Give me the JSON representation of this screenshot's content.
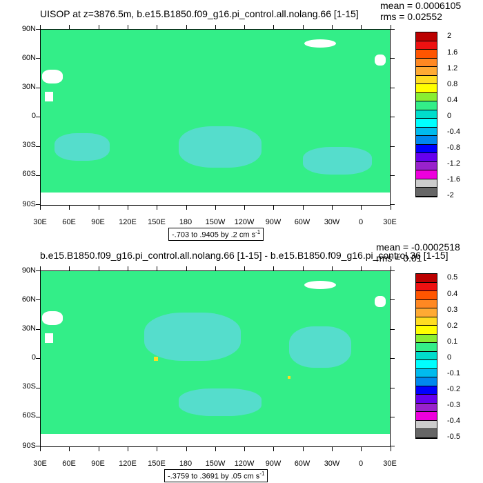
{
  "panels": [
    {
      "title": "UISOP at z=3876.5m, b.e15.B1850.f09_g16.pi_control.all.nolang.66 [1-15]",
      "mean_label": "mean = 0.0006105",
      "rms_label": "rms = 0.02552",
      "range_label": "-.703 to .9405 by .2 cm s",
      "range_superscript": "-1",
      "colorbar_labels": [
        "2",
        "1.6",
        "1.2",
        "0.8",
        "0.4",
        "0",
        "-0.4",
        "-0.8",
        "-1.2",
        "-1.6",
        "-2"
      ]
    },
    {
      "title": "b.e15.B1850.f09_g16.pi_control.all.nolang.66 [1-15] - b.e15.B1850.f09_g16.pi_control.36 [1-15]",
      "mean_label": "mean = -0.0002518",
      "rms_label": "rms = 0.01",
      "range_label": "-.3759 to .3691 by .05 cm s",
      "range_superscript": "-1",
      "colorbar_labels": [
        "0.5",
        "0.4",
        "0.3",
        "0.2",
        "0.1",
        "0",
        "-0.1",
        "-0.2",
        "-0.3",
        "-0.4",
        "-0.5"
      ]
    }
  ],
  "lat_labels": [
    "90N",
    "60N",
    "30N",
    "0",
    "30S",
    "60S",
    "90S"
  ],
  "lon_labels": [
    "30E",
    "60E",
    "90E",
    "120E",
    "150E",
    "180",
    "150W",
    "120W",
    "90W",
    "60W",
    "30W",
    "0",
    "30E"
  ],
  "colors": {
    "ocean": "#33ee88",
    "speckle": "#55ddcc",
    "colorbar": [
      "#bb0000",
      "#ee1111",
      "#ff5500",
      "#ff8822",
      "#ffaa33",
      "#ffdd22",
      "#ffff00",
      "#88ee33",
      "#33ee88",
      "#00ddcc",
      "#00ffff",
      "#00bbee",
      "#0088ee",
      "#0000ff",
      "#6600ee",
      "#9922cc",
      "#ee00dd",
      "#cccccc",
      "#666666"
    ]
  }
}
